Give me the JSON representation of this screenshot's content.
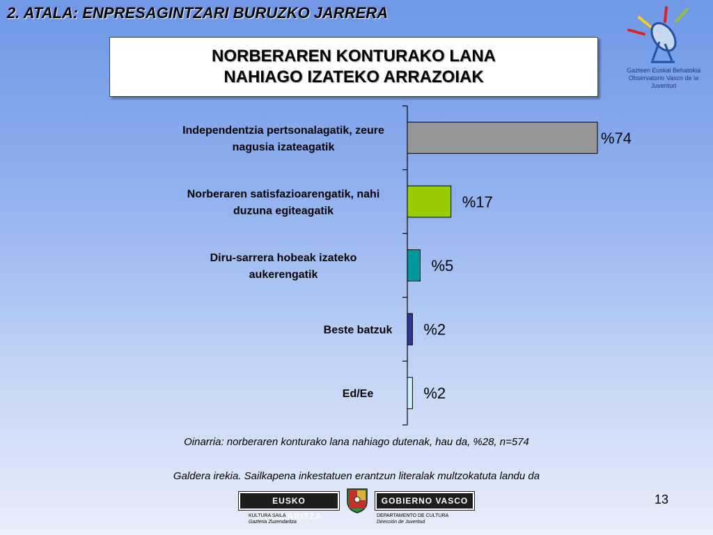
{
  "section_title": "2. ATALA: ENPRESAGINTZARI BURUZKO JARRERA",
  "title_line1": "NORBERAREN KONTURAKO LANA",
  "title_line2": "NAHIAGO IZATEKO ARRAZOIAK",
  "observatory_logo": {
    "name_eu": "Gazteen Euskal Behatokia",
    "name_es": "Observatorio Vasco de la Juventud"
  },
  "chart_data": {
    "type": "bar",
    "orientation": "horizontal",
    "title": "",
    "xlim": [
      0,
      74
    ],
    "grid": false,
    "categories": [
      [
        "Independentzia pertsonalagatik, zeure",
        "nagusia izateagatik"
      ],
      [
        "Norberaren satisfazioarengatik, nahi",
        "duzuna egiteagatik"
      ],
      [
        "Diru-sarrera hobeak izateko",
        "aukerengatik"
      ],
      [
        "Beste batzuk"
      ],
      [
        "Ed/Ee"
      ]
    ],
    "values": [
      74,
      17,
      5,
      2,
      2
    ],
    "value_labels": [
      "%74",
      "%17",
      "%5",
      "%2",
      "%2"
    ],
    "colors": [
      "#969696",
      "#99cc00",
      "#009999",
      "#333399",
      "#ccecff"
    ]
  },
  "notes": {
    "base": "Oinarria: norberaren konturako lana nahiago dutenak, hau da, %28, n=574",
    "question": "Galdera irekia. Sailkapena inkestatuen erantzun literalak multzokatuta landu da"
  },
  "page_number": "13",
  "gov_logo": {
    "left_text": "EUSKO JAURLARITZA",
    "right_text": "GOBIERNO VASCO",
    "left_sub1": "KULTURA SAILA",
    "left_sub2": "Gazteria Zuzendaritza",
    "right_sub1": "DEPARTAMENTO DE CULTURA",
    "right_sub2": "Dirección de Juventud"
  }
}
